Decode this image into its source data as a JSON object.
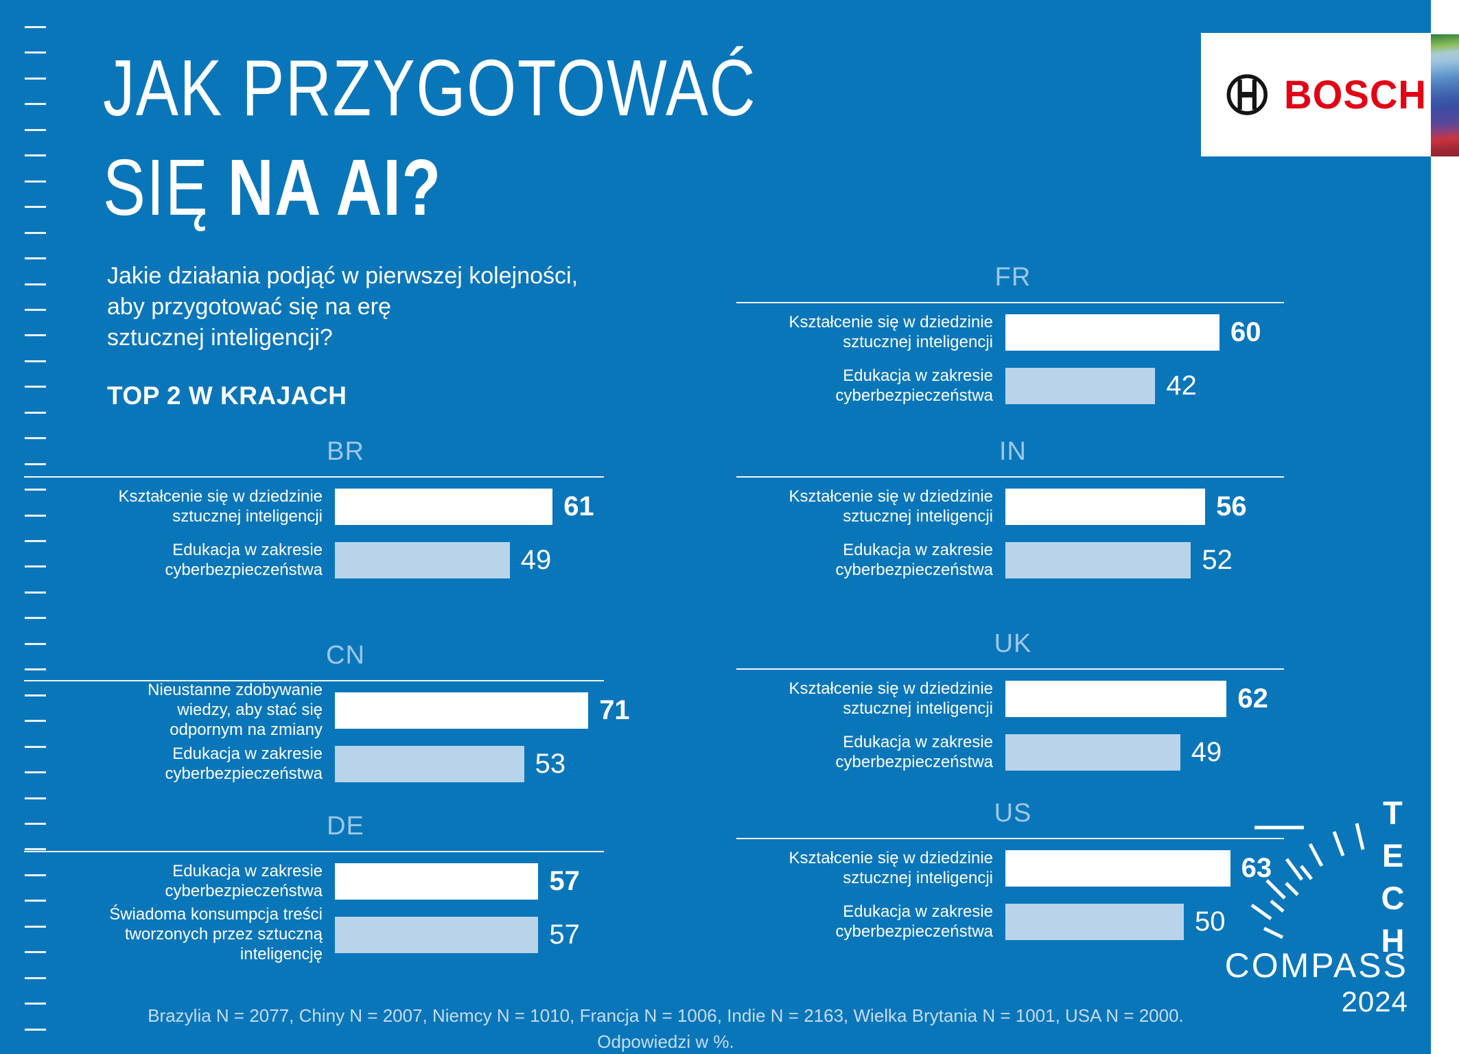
{
  "title": {
    "line1": "JAK PRZYGOTOWAĆ",
    "line2_light": "SIĘ",
    "line2_bold": "NA AI?"
  },
  "subtitle": {
    "lines": [
      "Jakie działania podjąć w pierwszej kolejności,",
      "aby przygotować się na erę",
      "sztucznej inteligencji?"
    ]
  },
  "section_label": "TOP 2 W KRAJACH",
  "brand": {
    "wordmark": "BOSCH"
  },
  "tech_compass": {
    "tech": "TECH",
    "compass": "COMPASS",
    "year": "2024"
  },
  "footer": {
    "line1": "Brazylia N = 2077, Chiny N = 2007, Niemcy N = 1010, Francja N = 1006, Indie N = 2163, Wielka Brytania N = 1001, USA N = 2000.",
    "line2": "Odpowiedzi w %."
  },
  "colors": {
    "background": "#0a76ba",
    "bar_primary": "#ffffff",
    "bar_secondary": "#b9d4ea",
    "country_label": "#9dc8e8",
    "footer_text": "#c5dcef",
    "bosch_red": "#e20015",
    "bosch_black": "#141414"
  },
  "chart_data": {
    "type": "bar",
    "orientation": "horizontal",
    "unit": "%",
    "title": "TOP 2 W KRAJACH",
    "value_range": [
      0,
      100
    ],
    "countries": [
      {
        "code": "BR",
        "bars": [
          {
            "label": "Kształcenie się w dziedzinie\nsztucznej inteligencji",
            "value": 61,
            "emphasis": "primary"
          },
          {
            "label": "Edukacja w zakresie\ncyberbezpieczeństwa",
            "value": 49,
            "emphasis": "secondary"
          }
        ]
      },
      {
        "code": "CN",
        "bars": [
          {
            "label": "Nieustanne zdobywanie\nwiedzy, aby stać się\nodpornym na zmiany",
            "value": 71,
            "emphasis": "primary"
          },
          {
            "label": "Edukacja w zakresie\ncyberbezpieczeństwa",
            "value": 53,
            "emphasis": "secondary"
          }
        ]
      },
      {
        "code": "DE",
        "bars": [
          {
            "label": "Edukacja w zakresie\ncyberbezpieczeństwa",
            "value": 57,
            "emphasis": "primary"
          },
          {
            "label": "Świadoma konsumpcja treści\ntworzonych przez sztuczną\ninteligencję",
            "value": 57,
            "emphasis": "secondary"
          }
        ]
      },
      {
        "code": "FR",
        "bars": [
          {
            "label": "Kształcenie się w dziedzinie\nsztucznej inteligencji",
            "value": 60,
            "emphasis": "primary"
          },
          {
            "label": "Edukacja w zakresie\ncyberbezpieczeństwa",
            "value": 42,
            "emphasis": "secondary"
          }
        ]
      },
      {
        "code": "IN",
        "bars": [
          {
            "label": "Kształcenie się w dziedzinie\nsztucznej inteligencji",
            "value": 56,
            "emphasis": "primary"
          },
          {
            "label": "Edukacja w zakresie\ncyberbezpieczeństwa",
            "value": 52,
            "emphasis": "secondary"
          }
        ]
      },
      {
        "code": "UK",
        "bars": [
          {
            "label": "Kształcenie się w dziedzinie\nsztucznej inteligencji",
            "value": 62,
            "emphasis": "primary"
          },
          {
            "label": "Edukacja w zakresie\ncyberbezpieczeństwa",
            "value": 49,
            "emphasis": "secondary"
          }
        ]
      },
      {
        "code": "US",
        "bars": [
          {
            "label": "Kształcenie się w dziedzinie\nsztucznej inteligencji",
            "value": 63,
            "emphasis": "primary"
          },
          {
            "label": "Edukacja w zakresie\ncyberbezpieczeństwa",
            "value": 50,
            "emphasis": "secondary"
          }
        ]
      }
    ]
  }
}
